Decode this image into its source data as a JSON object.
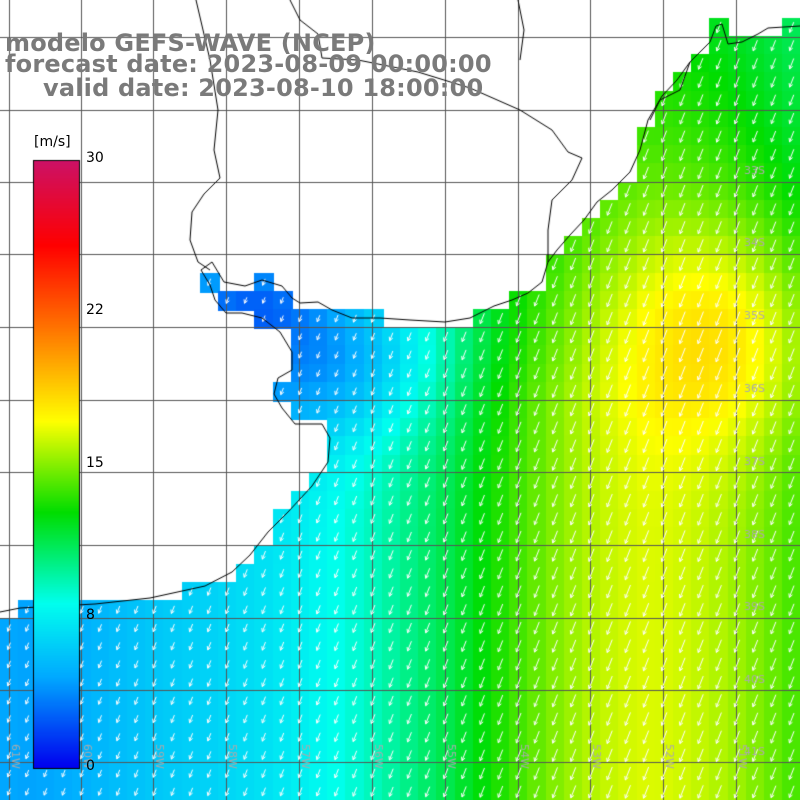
{
  "title": {
    "line1": "modelo GEFS-WAVE (NCEP)",
    "line2": "forecast date: 2023-08-09 00:00:00",
    "line3": "valid date: 2023-08-10 18:00:00"
  },
  "colorbar": {
    "unit_label": "[m/s]",
    "tick_values": [
      "30",
      "22",
      "15",
      "8",
      "0"
    ],
    "range": [
      0,
      30
    ],
    "stops": [
      "#0000ee",
      "#00aaff",
      "#00ffee",
      "#00dd00",
      "#ffff00",
      "#ff7700",
      "#ff0000",
      "#cc1166"
    ]
  },
  "graticule": {
    "lon_labels": [
      "61W",
      "60W",
      "59W",
      "58W",
      "57W",
      "56W",
      "55W",
      "54W",
      "53W",
      "52W",
      "51W"
    ],
    "lat_labels": [
      "33S",
      "34S",
      "35S",
      "36S",
      "37S",
      "38S",
      "39S",
      "40S",
      "41S"
    ]
  },
  "map_colors": {
    "land": "#ffffff",
    "coastline": "#000000",
    "grid": "#555555",
    "arrows": "#ffffff",
    "label_text": "#aaaaaa"
  }
}
